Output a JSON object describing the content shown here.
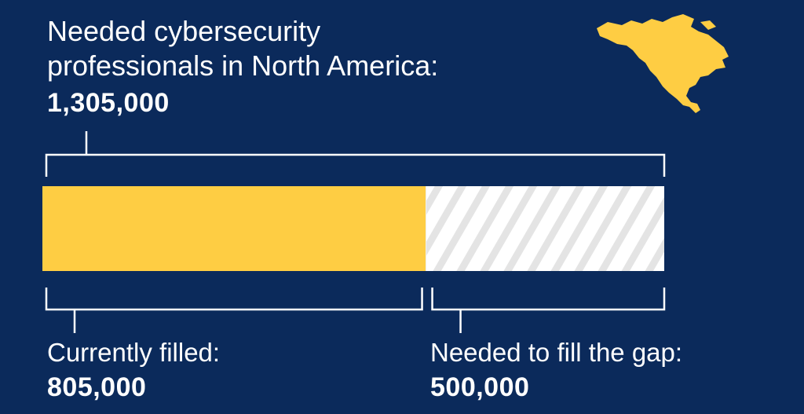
{
  "chart_data": {
    "type": "bar",
    "title_line1": "Needed cybersecurity",
    "title_line2": "professionals in North America:",
    "total": 1305000,
    "total_label": "1,305,000",
    "segments": [
      {
        "name": "Currently filled:",
        "value": 805000,
        "value_label": "805,000",
        "color": "#fecd43",
        "fill": "solid"
      },
      {
        "name": "Needed to fill the gap:",
        "value": 500000,
        "value_label": "500,000",
        "color": "#ffffff",
        "fill": "hatched"
      }
    ]
  },
  "colors": {
    "background": "#0b2a5b",
    "accent": "#fecd43",
    "bracket": "#ffffff",
    "hatch_base": "#ffffff",
    "hatch_stripe": "#e6e6e6"
  },
  "icons": [
    "north-america-map-icon"
  ]
}
